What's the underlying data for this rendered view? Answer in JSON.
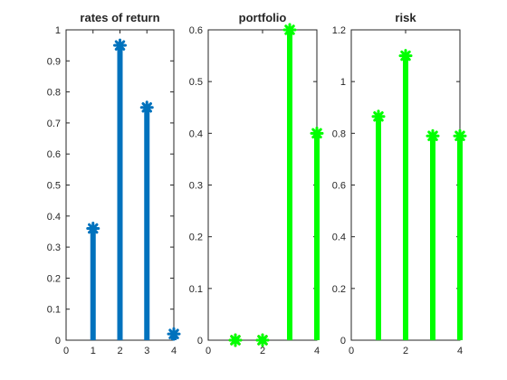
{
  "chart_data": [
    {
      "type": "stem",
      "title": "rates of return",
      "xlabel": "",
      "ylabel": "",
      "xlim": [
        0,
        4
      ],
      "ylim": [
        0,
        1
      ],
      "xticks": [
        "0",
        "1",
        "2",
        "3",
        "4"
      ],
      "yticks": [
        "0",
        "0.1",
        "0.2",
        "0.3",
        "0.4",
        "0.5",
        "0.6",
        "0.7",
        "0.8",
        "0.9",
        "1"
      ],
      "grid": false,
      "series": [
        {
          "x": [
            1,
            2,
            3,
            4
          ],
          "values": [
            0.36,
            0.95,
            0.75,
            0.02
          ],
          "color": "#0072BD",
          "marker": "asterisk"
        }
      ]
    },
    {
      "type": "stem",
      "title": "portfolio",
      "xlabel": "",
      "ylabel": "",
      "xlim": [
        0,
        4
      ],
      "ylim": [
        0,
        0.6
      ],
      "xticks": [
        "0",
        "2",
        "4"
      ],
      "yticks": [
        "0",
        "0.1",
        "0.2",
        "0.3",
        "0.4",
        "0.5",
        "0.6"
      ],
      "grid": false,
      "series": [
        {
          "x": [
            1,
            2
          ],
          "values": [
            0,
            0
          ],
          "color": "#D95319",
          "marker": "asterisk"
        },
        {
          "x": [
            1,
            2,
            3,
            4
          ],
          "values": [
            0,
            0,
            0.6,
            0.4
          ],
          "color": "#00FF00",
          "marker": "asterisk"
        }
      ]
    },
    {
      "type": "stem",
      "title": "risk",
      "xlabel": "",
      "ylabel": "",
      "xlim": [
        0,
        4
      ],
      "ylim": [
        0,
        1.2
      ],
      "xticks": [
        "0",
        "2",
        "4"
      ],
      "yticks": [
        "0",
        "0.2",
        "0.4",
        "0.6",
        "0.8",
        "1",
        "1.2"
      ],
      "grid": false,
      "series": [
        {
          "x": [
            1,
            2,
            3,
            4
          ],
          "values": [
            0.865,
            1.1,
            0.79,
            0.79
          ],
          "color": "#00FF00",
          "marker": "asterisk"
        }
      ]
    }
  ]
}
